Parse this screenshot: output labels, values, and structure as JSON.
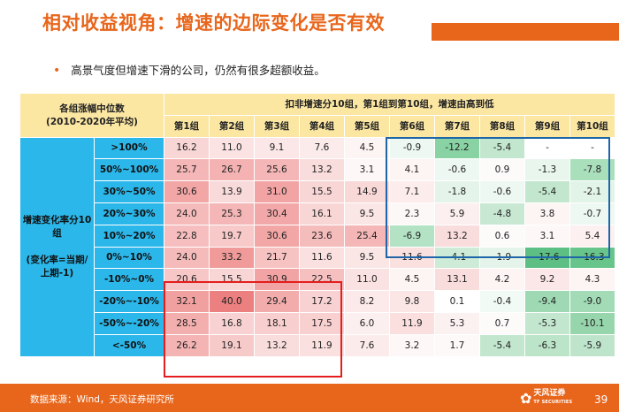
{
  "title": "相对收益视角：增速的边际变化是否有效",
  "bullet": {
    "marker": "•",
    "text": "高景气度但增速下滑的公司，仍然有很多超额收益。"
  },
  "table": {
    "corner_label_line1": "各组涨幅中位数",
    "corner_label_line2": "(2010-2020年平均)",
    "group_header": "扣非增速分10组，第1组到第10组，增速由高到低",
    "side_label_line1": "增速变化率分10",
    "side_label_line2": "组",
    "side_label_line3": "(变化率=当期/",
    "side_label_line4": "上期-1)",
    "columns": [
      "第1组",
      "第2组",
      "第3组",
      "第4组",
      "第5组",
      "第6组",
      "第7组",
      "第8组",
      "第9组",
      "第10组"
    ],
    "rows": [
      {
        "label": ">100%",
        "values": [
          "16.2",
          "11.0",
          "9.1",
          "7.6",
          "4.5",
          "-0.9",
          "-12.2",
          "-5.4",
          "-",
          "-"
        ],
        "colors": [
          "#f9d6d6",
          "#fbe3e3",
          "#fbe7e7",
          "#fcebeb",
          "#fdf4f4",
          "#eef8f2",
          "#89d2a4",
          "#c2e6ce",
          "#ffffff",
          "#ffffff"
        ]
      },
      {
        "label": "50%~100%",
        "values": [
          "25.7",
          "26.7",
          "25.6",
          "13.2",
          "3.1",
          "4.1",
          "-0.6",
          "0.9",
          "-1.3",
          "-7.8"
        ],
        "colors": [
          "#f4b6b6",
          "#f4b2b2",
          "#f4b6b6",
          "#f9dcdc",
          "#fdf7f7",
          "#fdf4f4",
          "#eef8f2",
          "#fdfafa",
          "#e9f6ee",
          "#aadfbc"
        ]
      },
      {
        "label": "30%~50%",
        "values": [
          "30.6",
          "13.9",
          "31.0",
          "15.5",
          "14.9",
          "7.1",
          "-1.8",
          "-0.6",
          "-5.4",
          "-2.1"
        ],
        "colors": [
          "#f2a6a6",
          "#f9dada",
          "#f2a4a4",
          "#f9d6d6",
          "#f9d8d8",
          "#fcecec",
          "#e4f4ea",
          "#eef8f2",
          "#c2e6ce",
          "#e2f3e8"
        ]
      },
      {
        "label": "20%~30%",
        "values": [
          "24.0",
          "25.3",
          "30.4",
          "16.1",
          "9.5",
          "2.3",
          "5.9",
          "-4.8",
          "3.8",
          "-0.7"
        ],
        "colors": [
          "#f5baba",
          "#f4b6b6",
          "#f2a8a8",
          "#f9d6d6",
          "#fbe6e6",
          "#fdf8f8",
          "#fcefef",
          "#c8e8d3",
          "#fdf4f4",
          "#eef8f2"
        ]
      },
      {
        "label": "10%~20%",
        "values": [
          "22.8",
          "19.7",
          "30.6",
          "23.6",
          "25.4",
          "-6.9",
          "13.2",
          "0.6",
          "3.1",
          "5.4"
        ],
        "colors": [
          "#f6bebe",
          "#f7c9c9",
          "#f2a6a6",
          "#f5bcbc",
          "#f4b6b6",
          "#b4e2c5",
          "#f9dcdc",
          "#fdfafa",
          "#fdf7f7",
          "#fcf0f0"
        ]
      },
      {
        "label": "0%~10%",
        "values": [
          "24.0",
          "33.2",
          "21.7",
          "11.6",
          "9.5",
          "11.6",
          "-4.1",
          "-1.9",
          "-17.6",
          "-16.3"
        ],
        "colors": [
          "#f5baba",
          "#f09a9a",
          "#f6c2c2",
          "#fbe0e0",
          "#fbe6e6",
          "#fbe0e0",
          "#cdebd7",
          "#e4f4ea",
          "#5dbf83",
          "#67c48a"
        ]
      },
      {
        "label": "-10%~0%",
        "values": [
          "20.6",
          "15.5",
          "30.9",
          "22.5",
          "11.0",
          "4.5",
          "13.1",
          "4.2",
          "9.2",
          "4.3"
        ],
        "colors": [
          "#f7c6c6",
          "#f9d6d6",
          "#f2a4a4",
          "#f6c0c0",
          "#fbe2e2",
          "#fdf4f4",
          "#f9dcdc",
          "#fdf4f4",
          "#fbe7e7",
          "#fdf4f4"
        ]
      },
      {
        "label": "-20%~-10%",
        "values": [
          "32.1",
          "40.0",
          "29.4",
          "17.2",
          "8.2",
          "9.8",
          "0.1",
          "-0.4",
          "-9.4",
          "-9.0"
        ],
        "colors": [
          "#f1a0a0",
          "#ec7f7f",
          "#f3acac",
          "#f8d2d2",
          "#fce9e9",
          "#fbe5e5",
          "#ffffff",
          "#f2faf5",
          "#9ed9b3",
          "#a2dbb6"
        ]
      },
      {
        "label": "-50%~-20%",
        "values": [
          "28.5",
          "16.8",
          "18.1",
          "17.5",
          "6.0",
          "11.9",
          "5.3",
          "0.7",
          "-5.3",
          "-10.1"
        ],
        "colors": [
          "#f3aeae",
          "#f8d2d2",
          "#f8cece",
          "#f8d0d0",
          "#fcefef",
          "#fbdfdf",
          "#fcf1f1",
          "#fdfafa",
          "#c3e6cf",
          "#97d6ad"
        ]
      },
      {
        "label": "<-50%",
        "values": [
          "26.2",
          "19.1",
          "13.2",
          "11.9",
          "7.6",
          "3.2",
          "1.7",
          "-5.4",
          "-6.3",
          "-5.9"
        ],
        "colors": [
          "#f4b4b4",
          "#f7caca",
          "#f9dcdc",
          "#fbe0e0",
          "#fcebeb",
          "#fdf7f7",
          "#fef9f9",
          "#c2e6ce",
          "#bbe4c9",
          "#bee5cc"
        ]
      }
    ]
  },
  "footer": {
    "source": "数据来源：Wind，天风证券研究所",
    "page": "39",
    "logo_text": "天风证券",
    "logo_sub": "TF SECURITIES"
  }
}
